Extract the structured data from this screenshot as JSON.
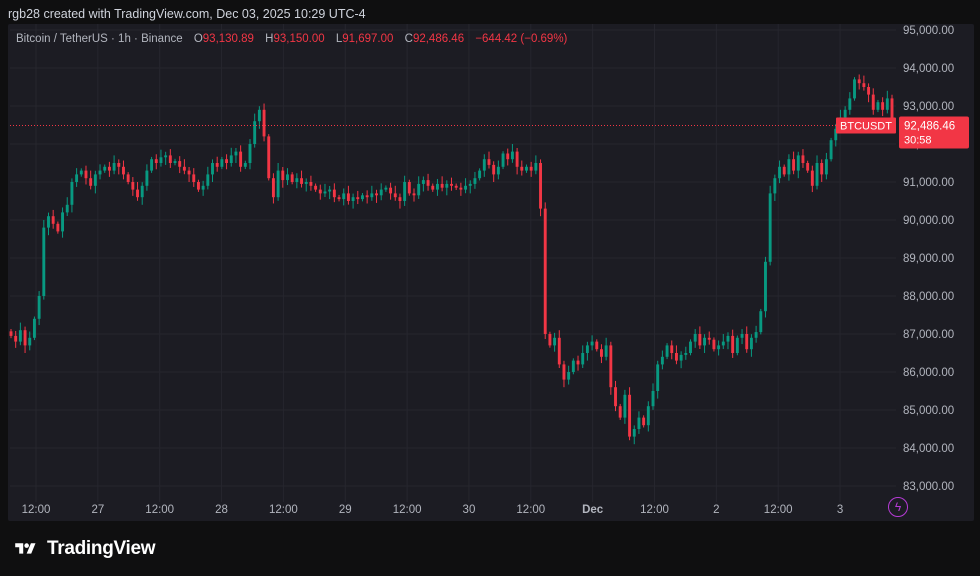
{
  "attribution": "rgb28 created with TradingView.com, Dec 03, 2025 10:29 UTC-4",
  "legend": {
    "symbol": "Bitcoin / TetherUS · 1h · Binance",
    "o_label": "O",
    "o_value": "93,130.89",
    "h_label": "H",
    "h_value": "93,150.00",
    "l_label": "L",
    "l_value": "91,697.00",
    "c_label": "C",
    "c_value": "92,486.46",
    "change": "−644.42 (−0.69%)"
  },
  "price_tag": {
    "ticker": "BTCUSDT",
    "price": "92,486.46",
    "countdown": "30:58"
  },
  "brand": "TradingView",
  "icons": {
    "alert": "lightning-bolt-icon",
    "logo": "tradingview-logo-icon"
  },
  "colors": {
    "up": "#089981",
    "down": "#f23645",
    "background": "#1c1c23",
    "grid": "#26262e",
    "axis_text": "#b2b5be"
  },
  "chart_data": {
    "type": "candlestick",
    "symbol": "BTCUSDT",
    "interval": "1h",
    "y_ticks": [
      83000,
      84000,
      85000,
      86000,
      87000,
      88000,
      89000,
      90000,
      91000,
      92000,
      93000,
      94000,
      95000
    ],
    "y_tick_labels": [
      "83,000.00",
      "84,000.00",
      "85,000.00",
      "86,000.00",
      "87,000.00",
      "88,000.00",
      "89,000.00",
      "90,000.00",
      "91,000.00",
      "92,000.00",
      "93,000.00",
      "94,000.00",
      "95,000.00"
    ],
    "ylim": [
      82700,
      95300
    ],
    "x_tick_labels": [
      "12:00",
      "27",
      "12:00",
      "28",
      "12:00",
      "29",
      "12:00",
      "30",
      "12:00",
      "Dec",
      "12:00",
      "2",
      "12:00",
      "3"
    ],
    "last_price": 92486.46,
    "grid": true,
    "closes": [
      86950,
      86800,
      87100,
      86700,
      86900,
      87400,
      88000,
      89800,
      90100,
      89900,
      89700,
      90200,
      90400,
      91000,
      91200,
      91300,
      91100,
      90900,
      91200,
      91300,
      91400,
      91300,
      91500,
      91400,
      91200,
      91000,
      90800,
      90600,
      90900,
      91300,
      91600,
      91500,
      91650,
      91700,
      91500,
      91550,
      91400,
      91300,
      91200,
      91000,
      90800,
      90900,
      91200,
      91500,
      91400,
      91600,
      91500,
      91700,
      91800,
      91400,
      91500,
      92000,
      92600,
      92900,
      92200,
      91100,
      90600,
      91300,
      91050,
      91200,
      91000,
      91100,
      90950,
      91000,
      90900,
      90800,
      90700,
      90750,
      90800,
      90600,
      90550,
      90700,
      90500,
      90600,
      90550,
      90650,
      90600,
      90700,
      90650,
      90800,
      90850,
      90700,
      90600,
      90500,
      91000,
      90700,
      90650,
      90950,
      91050,
      90900,
      90800,
      90950,
      90850,
      90950,
      90900,
      90850,
      90800,
      90900,
      90950,
      91100,
      91300,
      91600,
      91450,
      91200,
      91400,
      91750,
      91600,
      91800,
      91400,
      91300,
      91400,
      91300,
      91500,
      90300,
      87000,
      86700,
      86900,
      86200,
      85800,
      86000,
      86300,
      86200,
      86500,
      86700,
      86800,
      86600,
      86400,
      86700,
      85600,
      85100,
      84800,
      85400,
      84300,
      84500,
      84800,
      84600,
      85100,
      85500,
      86200,
      86400,
      86700,
      86500,
      86300,
      86450,
      86500,
      86800,
      87000,
      86700,
      86900,
      86850,
      86600,
      86700,
      86800,
      86950,
      86500,
      86900,
      87000,
      86600,
      86900,
      87050,
      87600,
      88900,
      90700,
      91100,
      91400,
      91200,
      91600,
      91300,
      91700,
      91500,
      91300,
      90900,
      91500,
      91200,
      91600,
      92100,
      92400,
      92700,
      92900,
      93200,
      93700,
      93600,
      93500,
      93300,
      92900,
      93100,
      92900,
      93200,
      92486
    ]
  }
}
